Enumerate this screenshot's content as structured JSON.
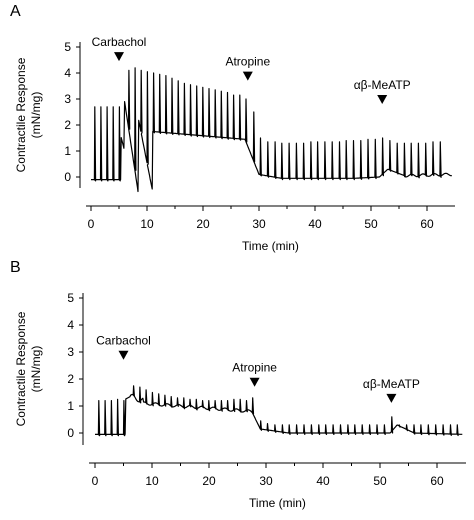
{
  "figure": {
    "panels": [
      "A",
      "B"
    ]
  },
  "chart_data": [
    {
      "panel_label": "A",
      "type": "line",
      "xlabel": "Time (min)",
      "ylabel_line1": "Contractile Response",
      "ylabel_line2": "(mN/mg)",
      "xlim": [
        -1,
        65
      ],
      "ylim": [
        -0.4,
        5.3
      ],
      "xticks": [
        0,
        10,
        20,
        30,
        40,
        50,
        60
      ],
      "yticks": [
        0,
        1,
        2,
        3,
        4,
        5
      ],
      "annotations": [
        {
          "label": "Carbachol",
          "x": 5,
          "y": 4.65
        },
        {
          "label": "Atropine",
          "x": 28,
          "y": 3.9
        },
        {
          "label": "αβ-MeATP",
          "x": 52,
          "y": 3.0
        }
      ],
      "segments": [
        {
          "t0": 0,
          "t1": 5.3,
          "a": -0.1,
          "b": -0.1,
          "c": 0
        },
        {
          "t0": 5.3,
          "t1": 6.0,
          "a": 1.6,
          "b": 1.0,
          "c": 0
        },
        {
          "t0": 6.0,
          "t1": 8.5,
          "a": 2.9,
          "b": -0.7,
          "c": 0
        },
        {
          "t0": 8.5,
          "t1": 11.0,
          "a": 2.2,
          "b": -0.55,
          "c": 0
        },
        {
          "t0": 11.0,
          "t1": 27.5,
          "a": 1.75,
          "b": 1.45,
          "c": 0
        },
        {
          "t0": 27.5,
          "t1": 30.0,
          "a": 1.45,
          "b": 0.1,
          "c": 0
        },
        {
          "t0": 30.0,
          "t1": 34.0,
          "a": 0.1,
          "b": -0.05,
          "c": 0
        },
        {
          "t0": 34.0,
          "t1": 47.0,
          "a": -0.05,
          "b": -0.05,
          "c": 0
        },
        {
          "t0": 47.0,
          "t1": 51.5,
          "a": -0.05,
          "b": 0.0,
          "c": 0
        },
        {
          "t0": 51.5,
          "t1": 53.0,
          "a": 0.0,
          "b": 0.3,
          "c": 0
        },
        {
          "t0": 53.0,
          "t1": 56.0,
          "a": 0.3,
          "b": 0.05,
          "c": 0
        },
        {
          "t0": 56.0,
          "t1": 64.5,
          "a": 0.05,
          "b": 0.1,
          "c": 0.05
        }
      ],
      "spike_times": [
        0.6,
        1.7,
        2.8,
        3.9,
        5.0,
        6.7,
        7.8,
        8.9,
        10.0,
        11.1,
        12.2,
        13.3,
        14.4,
        15.5,
        16.6,
        17.7,
        18.8,
        19.9,
        21.0,
        22.1,
        23.2,
        24.3,
        25.4,
        26.5,
        27.6,
        29.0,
        30.2,
        31.5,
        32.8,
        34.0,
        35.3,
        36.6,
        37.9,
        39.2,
        40.4,
        41.7,
        43.0,
        44.3,
        45.5,
        46.8,
        48.1,
        49.4,
        50.7,
        52.0,
        53.3,
        54.6,
        55.9,
        57.1,
        58.4,
        59.7,
        61.0,
        62.3
      ],
      "spike_peaks": [
        2.7,
        2.7,
        2.7,
        2.7,
        2.7,
        4.1,
        4.2,
        4.1,
        4.05,
        4.0,
        3.95,
        3.9,
        3.8,
        3.7,
        3.6,
        3.55,
        3.5,
        3.45,
        3.4,
        3.35,
        3.3,
        3.25,
        3.15,
        3.15,
        3.0,
        2.5,
        1.5,
        1.35,
        1.35,
        1.3,
        1.3,
        1.3,
        1.3,
        1.35,
        1.35,
        1.35,
        1.35,
        1.35,
        1.4,
        1.4,
        1.4,
        1.45,
        1.45,
        1.5,
        1.4,
        1.3,
        1.3,
        1.3,
        1.3,
        1.3,
        1.35,
        1.35
      ]
    },
    {
      "panel_label": "B",
      "type": "line",
      "xlabel": "Time (min)",
      "ylabel_line1": "Contractile Response",
      "ylabel_line2": "(mN/mg)",
      "xlim": [
        -1,
        65
      ],
      "ylim": [
        -0.4,
        5.3
      ],
      "xticks": [
        0,
        10,
        20,
        30,
        40,
        50,
        60
      ],
      "yticks": [
        0,
        1,
        2,
        3,
        4,
        5
      ],
      "annotations": [
        {
          "label": "Carbachol",
          "x": 5,
          "y": 2.9
        },
        {
          "label": "Atropine",
          "x": 28,
          "y": 1.9
        },
        {
          "label": "αβ-MeATP",
          "x": 52,
          "y": 1.3
        }
      ],
      "segments": [
        {
          "t0": 0,
          "t1": 5.3,
          "a": -0.05,
          "b": -0.05,
          "c": 0
        },
        {
          "t0": 5.3,
          "t1": 6.2,
          "a": 1.25,
          "b": 1.35,
          "c": 0
        },
        {
          "t0": 6.2,
          "t1": 8.5,
          "a": 1.35,
          "b": 1.2,
          "c": 0.1
        },
        {
          "t0": 8.5,
          "t1": 27.5,
          "a": 1.1,
          "b": 0.8,
          "c": 0.05
        },
        {
          "t0": 27.5,
          "t1": 29.0,
          "a": 0.8,
          "b": 0.15,
          "c": 0
        },
        {
          "t0": 29.0,
          "t1": 34.0,
          "a": 0.15,
          "b": 0.0,
          "c": 0
        },
        {
          "t0": 34.0,
          "t1": 51.8,
          "a": 0.0,
          "b": 0.0,
          "c": 0
        },
        {
          "t0": 51.8,
          "t1": 53.0,
          "a": 0.0,
          "b": 0.3,
          "c": 0
        },
        {
          "t0": 53.0,
          "t1": 56.0,
          "a": 0.3,
          "b": 0.0,
          "c": 0
        },
        {
          "t0": 56.0,
          "t1": 64.5,
          "a": 0.0,
          "b": -0.05,
          "c": 0
        }
      ],
      "spike_times": [
        0.6,
        1.7,
        2.8,
        3.9,
        5.0,
        6.7,
        7.8,
        8.9,
        10.0,
        11.1,
        12.2,
        13.3,
        14.4,
        15.5,
        16.6,
        17.7,
        18.8,
        19.9,
        21.0,
        22.1,
        23.2,
        24.3,
        25.4,
        26.5,
        27.6,
        29.0,
        30.2,
        31.5,
        32.8,
        34.0,
        35.3,
        36.6,
        37.9,
        39.2,
        40.4,
        41.7,
        43.0,
        44.3,
        45.5,
        46.8,
        48.1,
        49.4,
        50.7,
        52.0,
        53.3,
        54.6,
        55.9,
        57.1,
        58.4,
        59.7,
        61.0,
        62.3,
        63.5
      ],
      "spike_peaks": [
        1.2,
        1.2,
        1.2,
        1.25,
        1.2,
        1.75,
        1.7,
        1.6,
        1.5,
        1.45,
        1.4,
        1.35,
        1.3,
        1.3,
        1.25,
        1.25,
        1.2,
        1.2,
        1.2,
        1.2,
        1.2,
        1.25,
        1.25,
        1.2,
        1.3,
        0.45,
        0.35,
        0.3,
        0.3,
        0.3,
        0.3,
        0.3,
        0.3,
        0.3,
        0.3,
        0.3,
        0.3,
        0.3,
        0.3,
        0.3,
        0.3,
        0.3,
        0.3,
        0.6,
        0.3,
        0.3,
        0.3,
        0.3,
        0.3,
        0.3,
        0.3,
        0.3,
        0.3
      ]
    }
  ]
}
